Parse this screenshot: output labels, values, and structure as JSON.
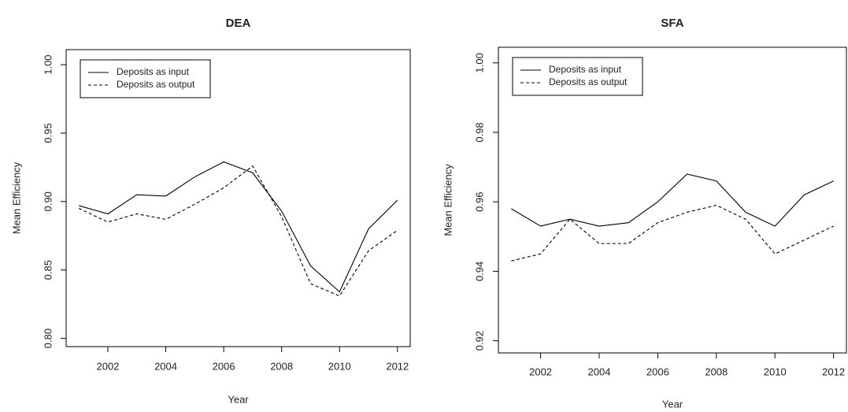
{
  "chart_data": [
    {
      "type": "line",
      "title": "DEA",
      "xlabel": "Year",
      "ylabel": "Mean Efficiency",
      "x": [
        2001,
        2002,
        2003,
        2004,
        2005,
        2006,
        2007,
        2008,
        2009,
        2010,
        2011,
        2012
      ],
      "series": [
        {
          "name": "Deposits as input",
          "color": "#000000",
          "linestyle": "solid",
          "values": [
            0.897,
            0.891,
            0.905,
            0.904,
            0.918,
            0.929,
            0.921,
            0.893,
            0.853,
            0.834,
            0.88,
            0.901
          ]
        },
        {
          "name": "Deposits as output",
          "color": "#000000",
          "linestyle": "dashed",
          "values": [
            0.895,
            0.885,
            0.891,
            0.887,
            0.898,
            0.91,
            0.926,
            0.889,
            0.84,
            0.831,
            0.864,
            0.879
          ]
        }
      ],
      "xlim": [
        2000.56,
        2012.44
      ],
      "xticks": [
        2002,
        2004,
        2006,
        2008,
        2010,
        2012
      ],
      "ylim": [
        0.794,
        1.011
      ],
      "yticks": [
        {
          "value": 0.8,
          "label": "0.80"
        },
        {
          "value": 0.85,
          "label": "0.85"
        },
        {
          "value": 0.9,
          "label": "0.90"
        },
        {
          "value": 0.95,
          "label": "0.95"
        },
        {
          "value": 1.0,
          "label": "1.00"
        }
      ],
      "legend": "top-left",
      "grid": false
    },
    {
      "type": "line",
      "title": "SFA",
      "xlabel": "Year",
      "ylabel": "Mean Efficiency",
      "x": [
        2001,
        2002,
        2003,
        2004,
        2005,
        2006,
        2007,
        2008,
        2009,
        2010,
        2011,
        2012
      ],
      "series": [
        {
          "name": "Deposits as input",
          "color": "#000000",
          "linestyle": "solid",
          "values": [
            0.958,
            0.953,
            0.955,
            0.953,
            0.954,
            0.96,
            0.968,
            0.966,
            0.957,
            0.953,
            0.962,
            0.966
          ]
        },
        {
          "name": "Deposits as output",
          "color": "#000000",
          "linestyle": "dashed",
          "values": [
            0.943,
            0.945,
            0.955,
            0.948,
            0.948,
            0.954,
            0.957,
            0.959,
            0.955,
            0.945,
            0.949,
            0.953
          ]
        }
      ],
      "xlim": [
        2000.56,
        2012.44
      ],
      "xticks": [
        2002,
        2004,
        2006,
        2008,
        2010,
        2012
      ],
      "ylim": [
        0.9165,
        1.0045
      ],
      "yticks": [
        {
          "value": 0.92,
          "label": "0.92"
        },
        {
          "value": 0.94,
          "label": "0.94"
        },
        {
          "value": 0.96,
          "label": "0.96"
        },
        {
          "value": 0.98,
          "label": "0.98"
        },
        {
          "value": 1.0,
          "label": "1.00"
        }
      ],
      "legend": "top-left",
      "grid": false
    }
  ]
}
